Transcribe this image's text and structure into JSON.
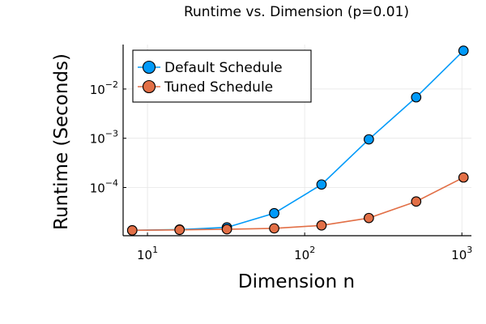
{
  "chart_data": {
    "type": "line",
    "title": "Runtime vs. Dimension (p=0.01)",
    "xlabel": "Dimension n",
    "ylabel": "Runtime (Seconds)",
    "xscale": "log10",
    "yscale": "log10",
    "xlim": [
      7,
      1150
    ],
    "ylim": [
      1.05e-05,
      0.08
    ],
    "grid": true,
    "legend_position": "top-left",
    "x_ticks": [
      {
        "value": 10,
        "base": "10",
        "exp": "1"
      },
      {
        "value": 100,
        "base": "10",
        "exp": "2"
      },
      {
        "value": 1000,
        "base": "10",
        "exp": "3"
      }
    ],
    "y_ticks": [
      {
        "value": 0.0001,
        "base": "10",
        "exp": "−4"
      },
      {
        "value": 0.001,
        "base": "10",
        "exp": "−3"
      },
      {
        "value": 0.01,
        "base": "10",
        "exp": "−2"
      }
    ],
    "x": [
      8,
      16,
      32,
      64,
      128,
      256,
      512,
      1024
    ],
    "series": [
      {
        "name": "Default Schedule",
        "color": "#009af9",
        "values": [
          1.35e-05,
          1.4e-05,
          1.55e-05,
          3e-05,
          0.000115,
          0.00095,
          0.0068,
          0.06
        ]
      },
      {
        "name": "Tuned Schedule",
        "color": "#e26f46",
        "values": [
          1.35e-05,
          1.38e-05,
          1.42e-05,
          1.48e-05,
          1.7e-05,
          2.4e-05,
          5.2e-05,
          0.00016
        ]
      }
    ]
  }
}
